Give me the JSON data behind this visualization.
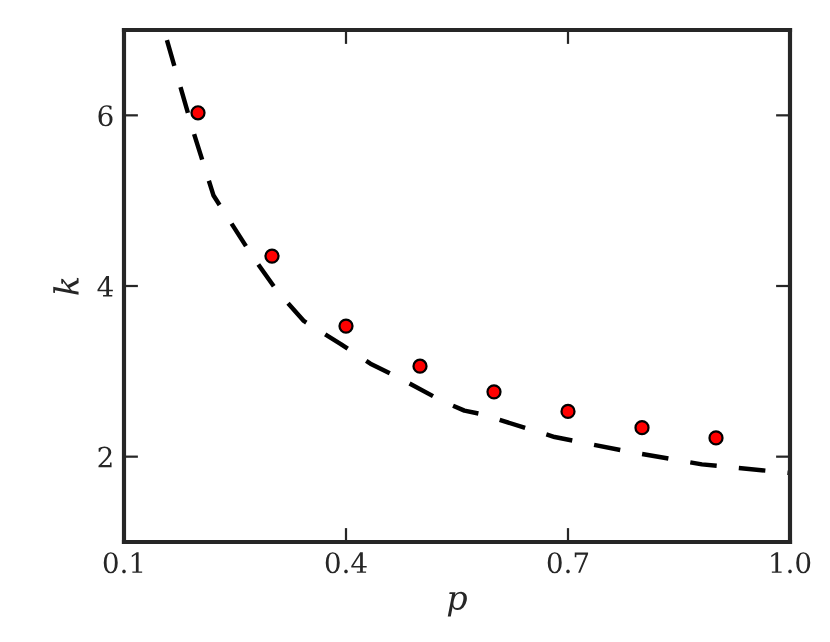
{
  "chart_data": {
    "type": "scatter",
    "xlabel": "p",
    "ylabel": "k",
    "xlim": [
      0.1,
      1.0
    ],
    "ylim": [
      1,
      7
    ],
    "xticks": [
      0.1,
      0.4,
      0.7,
      {
        "value": 1.0,
        "label": "1.0"
      }
    ],
    "yticks": [
      2,
      4,
      6
    ],
    "grid": false,
    "legend": false,
    "series": [
      {
        "type": "line",
        "color": "#000000",
        "line_style": "dashed",
        "marker": "none",
        "x": [
          0.158,
          0.194,
          0.221,
          0.275,
          0.307,
          0.343,
          0.393,
          0.433,
          0.479,
          0.528,
          0.56,
          0.582,
          0.682,
          0.781,
          0.881,
          0.998
        ],
        "values": [
          6.88,
          5.8,
          5.06,
          4.33,
          3.94,
          3.59,
          3.32,
          3.09,
          2.89,
          2.66,
          2.54,
          2.5,
          2.23,
          2.06,
          1.91,
          1.81
        ]
      },
      {
        "color": "#ff0000",
        "marker": "circle",
        "x": [
          0.2,
          0.3,
          0.4,
          0.5,
          0.6,
          0.7,
          0.8,
          0.9
        ],
        "values": [
          6.03,
          4.35,
          3.53,
          3.06,
          2.76,
          2.53,
          2.34,
          2.22
        ]
      }
    ]
  }
}
